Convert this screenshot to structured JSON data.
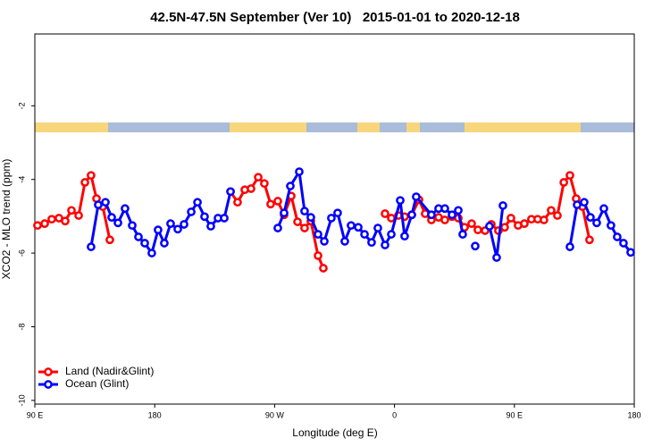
{
  "chart_data": {
    "type": "line",
    "title": "42.5N-47.5N September (Ver 10)   2015-01-01 to 2020-12-18",
    "xlabel": "Longitude (deg E)",
    "ylabel": "XCO2 - MLO trend (ppm)",
    "xlim": [
      90,
      540
    ],
    "ylim": [
      -10.1,
      -0.05
    ],
    "xticks": [
      {
        "value": 90,
        "label": "90 E"
      },
      180,
      {
        "value": 270,
        "label": "90 W"
      },
      {
        "value": 360,
        "label": "0"
      },
      {
        "value": 450,
        "label": "90 E"
      },
      {
        "value": 540,
        "label": "180"
      }
    ],
    "yticks": [
      -2,
      -4,
      -6,
      -8,
      -10
    ],
    "legend": "bottom-left",
    "series": [
      {
        "name": "Land (Nadir&Glint)",
        "color": "#ff0000",
        "x": [
          92.0,
          97.4,
          102.7,
          108.1,
          112.8,
          117.5,
          122.9,
          127.6,
          132.2,
          136.3,
          141.0,
          146.3,
          null,
          236.9,
          242.2,
          247.6,
          252.3,
          257.7,
          262.3,
          267.0,
          272.4,
          277.1,
          282.5,
          287.2,
          292.5,
          297.2,
          302.6,
          306.6,
          null,
          352.9,
          357.6,
          362.9,
          367.6,
          373.0,
          378.4,
          383.0,
          387.7,
          393.1,
          397.8,
          403.2,
          407.9,
          412.6,
          417.9,
          422.6,
          428.0,
          432.7,
          438.0,
          442.7,
          447.4,
          452.8,
          457.5,
          462.8,
          467.5,
          472.2,
          477.6,
          482.3,
          487.1,
          491.7,
          496.4,
          501.1,
          506.4
        ],
        "values": [
          -5.25,
          -5.2,
          -5.08,
          -5.05,
          -5.13,
          -4.84,
          -4.98,
          -4.08,
          -3.89,
          -4.52,
          -4.74,
          -5.64,
          null,
          -4.33,
          -4.62,
          -4.28,
          -4.25,
          -3.94,
          -4.11,
          -4.67,
          -4.59,
          -4.96,
          -4.45,
          -5.15,
          -5.32,
          -5.13,
          -6.07,
          -6.41,
          null,
          -4.93,
          -5.05,
          -4.98,
          -5.01,
          -4.96,
          -4.55,
          -4.93,
          -5.1,
          -5.03,
          -5.1,
          -5.01,
          -5.05,
          -5.3,
          -5.2,
          -5.37,
          -5.39,
          -5.22,
          -5.39,
          -5.3,
          -5.05,
          -5.25,
          -5.2,
          -5.08,
          -5.08,
          -5.1,
          -4.84,
          -4.98,
          -4.08,
          -3.89,
          -4.52,
          -4.74,
          -5.64
        ]
      },
      {
        "name": "Ocean (Glint)",
        "color": "#0000ff",
        "x": [
          132.2,
          137.6,
          143.0,
          147.7,
          152.4,
          157.7,
          163.1,
          167.8,
          172.5,
          177.8,
          182.5,
          187.2,
          191.9,
          197.3,
          202.0,
          207.4,
          212.1,
          217.4,
          222.1,
          227.5,
          232.2,
          236.9,
          null,
          272.4,
          277.1,
          281.8,
          288.5,
          292.5,
          297.2,
          302.6,
          307.3,
          312.6,
          317.3,
          322.7,
          327.4,
          332.8,
          337.5,
          342.8,
          347.5,
          352.9,
          357.6,
          364.3,
          367.6,
          373.0,
          376.3,
          387.7,
          393.1,
          397.8,
          403.2,
          407.9,
          411.2,
          null,
          420.6,
          null,
          431.3,
          436.7,
          441.4,
          null,
          491.7,
          497.1,
          502.4,
          507.1,
          511.8,
          517.2,
          522.5,
          527.2,
          531.9,
          537.3
        ],
        "values": [
          -5.83,
          -4.69,
          -4.62,
          -5.03,
          -5.18,
          -4.79,
          -5.25,
          -5.56,
          -5.73,
          -6.0,
          -5.37,
          -5.73,
          -5.2,
          -5.35,
          -5.22,
          -4.88,
          -4.62,
          -5.01,
          -5.27,
          -5.05,
          -5.05,
          -4.33,
          null,
          -5.32,
          -4.91,
          -4.18,
          -3.79,
          -4.86,
          -5.03,
          -5.49,
          -5.68,
          -5.05,
          -4.91,
          -5.68,
          -5.25,
          -5.3,
          -5.49,
          -5.71,
          -5.32,
          -5.78,
          -5.49,
          -4.57,
          -5.54,
          -4.96,
          -4.47,
          -4.96,
          -4.79,
          -4.79,
          -4.96,
          -4.84,
          -5.49,
          null,
          -5.81,
          null,
          -5.27,
          -6.12,
          -4.71,
          null,
          -5.83,
          -4.69,
          -4.62,
          -5.03,
          -5.18,
          -4.79,
          -5.25,
          -5.56,
          -5.73,
          -5.98
        ]
      }
    ]
  }
}
